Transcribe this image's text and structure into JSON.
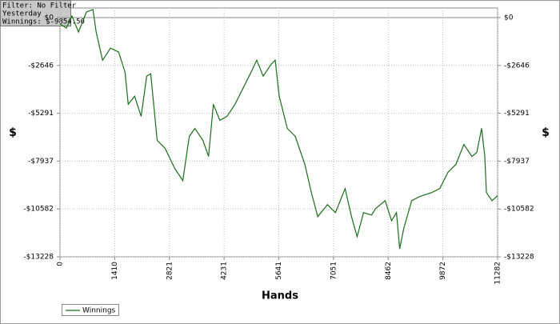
{
  "chart_data": {
    "type": "line",
    "info": [
      "Filter: No Filter",
      "Yesterday",
      "Winnings: $-9854.50"
    ],
    "x_label": "Hands",
    "y_label": "$",
    "y2_label": "$",
    "x": [
      0,
      166,
      310,
      476,
      683,
      849,
      932,
      1097,
      1304,
      1511,
      1677,
      1760,
      1925,
      2091,
      2236,
      2339,
      2505,
      2712,
      2960,
      3167,
      3333,
      3478,
      3685,
      3830,
      3954,
      4120,
      4306,
      4513,
      4720,
      4927,
      5072,
      5238,
      5445,
      5548,
      5652,
      5859,
      6066,
      6314,
      6480,
      6646,
      6894,
      7101,
      7350,
      7515,
      7660,
      7826,
      8033,
      8136,
      8384,
      8550,
      8674,
      8757,
      8860,
      9067,
      9274,
      9585,
      9792,
      9999,
      10206,
      10413,
      10620,
      10745,
      10869,
      10951,
      10993,
      11138,
      11282
    ],
    "series": [
      {
        "name": "Winnings",
        "color": "#1b6e1b",
        "values": [
          -355,
          -577,
          89,
          -799,
          311,
          444,
          -799,
          -2353,
          -1687,
          -1909,
          -3019,
          -4794,
          -4350,
          -5460,
          -3241,
          -3107,
          -6792,
          -7236,
          -8345,
          -9011,
          -6570,
          -6126,
          -6792,
          -7680,
          -4794,
          -5682,
          -5460,
          -4794,
          -3906,
          -3019,
          -2353,
          -3241,
          -2575,
          -2353,
          -4350,
          -6126,
          -6570,
          -8123,
          -9677,
          -11009,
          -10343,
          -10787,
          -9455,
          -11009,
          -12119,
          -10787,
          -10920,
          -10565,
          -10121,
          -11231,
          -10787,
          -12785,
          -11675,
          -10121,
          -9899,
          -9677,
          -9455,
          -8567,
          -8123,
          -7014,
          -7680,
          -7458,
          -6126,
          -7680,
          -9677,
          -10121,
          -9854.5
        ]
      }
    ],
    "xlim": [
      0,
      11282
    ],
    "xticks": [
      0,
      1410,
      2821,
      4231,
      5641,
      7051,
      8462,
      9872,
      11282
    ],
    "ylim": [
      -13228,
      530
    ],
    "yticks": [
      {
        "value": 0,
        "label": "$0"
      },
      {
        "value": -2646,
        "label": "-$2646"
      },
      {
        "value": -5291,
        "label": "-$5291"
      },
      {
        "value": -7937,
        "label": "-$7937"
      },
      {
        "value": -10582,
        "label": "-$10582"
      },
      {
        "value": -13228,
        "label": "-$13228"
      }
    ],
    "grid": true
  }
}
